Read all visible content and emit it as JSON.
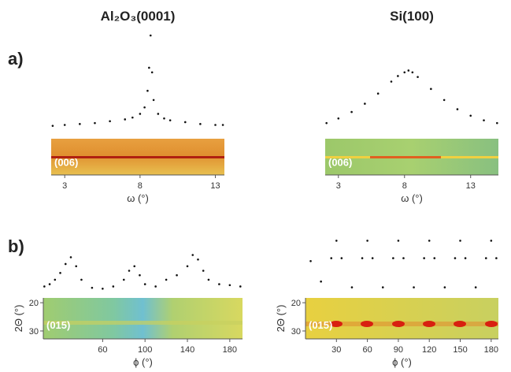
{
  "panels": [
    "a)",
    "b)"
  ],
  "chart_data": [
    {
      "type": "scatter",
      "title": "Al₂O₃(0001)",
      "xlabel": "ω  (°)",
      "strip_label": "(006)",
      "xlim": [
        2.1,
        13.6
      ],
      "xticks": [
        3,
        8,
        13
      ],
      "ylim": [
        0,
        1
      ],
      "x": [
        2.2,
        3,
        4,
        5,
        6,
        7,
        7.5,
        8,
        8.3,
        8.5,
        8.6,
        8.7,
        8.8,
        8.9,
        9.2,
        9.6,
        10,
        11,
        12,
        13,
        13.5
      ],
      "values": [
        0.02,
        0.03,
        0.04,
        0.05,
        0.07,
        0.09,
        0.11,
        0.15,
        0.22,
        0.4,
        0.65,
        1.0,
        0.6,
        0.3,
        0.15,
        0.1,
        0.08,
        0.06,
        0.04,
        0.03,
        0.03
      ]
    },
    {
      "type": "scatter",
      "title": "Si(100)",
      "xlabel": "ω  (°)",
      "strip_label": "(006)",
      "xlim": [
        2.0,
        15.1
      ],
      "xticks": [
        3,
        8,
        13
      ],
      "ylim": [
        0,
        1
      ],
      "x": [
        2.1,
        3,
        4,
        5,
        6,
        7,
        7.5,
        8,
        8.3,
        8.6,
        9,
        10,
        11,
        12,
        13,
        14,
        15
      ],
      "values": [
        0.05,
        0.1,
        0.17,
        0.26,
        0.37,
        0.5,
        0.56,
        0.6,
        0.62,
        0.6,
        0.55,
        0.42,
        0.3,
        0.2,
        0.13,
        0.08,
        0.05
      ]
    },
    {
      "type": "scatter",
      "xlabel": "ϕ (°)",
      "strip_label": "(015)",
      "strip_ylabel": "2Θ (°)",
      "strip_ylim": [
        18.3,
        32.8
      ],
      "strip_yticks": [
        20,
        30
      ],
      "xlim": [
        4,
        192
      ],
      "xticks": [
        60,
        100,
        140,
        180
      ],
      "ylim": [
        0,
        1
      ],
      "x": [
        5,
        10,
        15,
        20,
        25,
        30,
        35,
        40,
        50,
        60,
        70,
        80,
        85,
        90,
        95,
        100,
        110,
        120,
        130,
        140,
        145,
        150,
        155,
        160,
        170,
        180,
        190
      ],
      "values": [
        0.15,
        0.2,
        0.3,
        0.45,
        0.65,
        0.8,
        0.6,
        0.3,
        0.12,
        0.1,
        0.15,
        0.3,
        0.5,
        0.6,
        0.4,
        0.2,
        0.15,
        0.3,
        0.4,
        0.6,
        0.85,
        0.75,
        0.5,
        0.3,
        0.2,
        0.18,
        0.15
      ]
    },
    {
      "type": "scatter",
      "xlabel": "ϕ (°)",
      "strip_label": "(015)",
      "strip_ylabel": "2Θ (°)",
      "strip_ylim": [
        18.3,
        32.8
      ],
      "strip_yticks": [
        20,
        30
      ],
      "xlim": [
        0,
        187
      ],
      "xticks": [
        30,
        60,
        90,
        120,
        150,
        180
      ],
      "ylim": [
        0,
        1
      ],
      "x": [
        5,
        15,
        25,
        30,
        35,
        45,
        55,
        60,
        65,
        75,
        85,
        90,
        95,
        105,
        115,
        120,
        125,
        135,
        145,
        150,
        155,
        165,
        175,
        180,
        185
      ],
      "values": [
        0.55,
        0.2,
        0.6,
        0.9,
        0.6,
        0.1,
        0.6,
        0.9,
        0.6,
        0.1,
        0.6,
        0.9,
        0.6,
        0.1,
        0.6,
        0.9,
        0.6,
        0.1,
        0.6,
        0.9,
        0.6,
        0.1,
        0.6,
        0.9,
        0.6
      ]
    }
  ]
}
